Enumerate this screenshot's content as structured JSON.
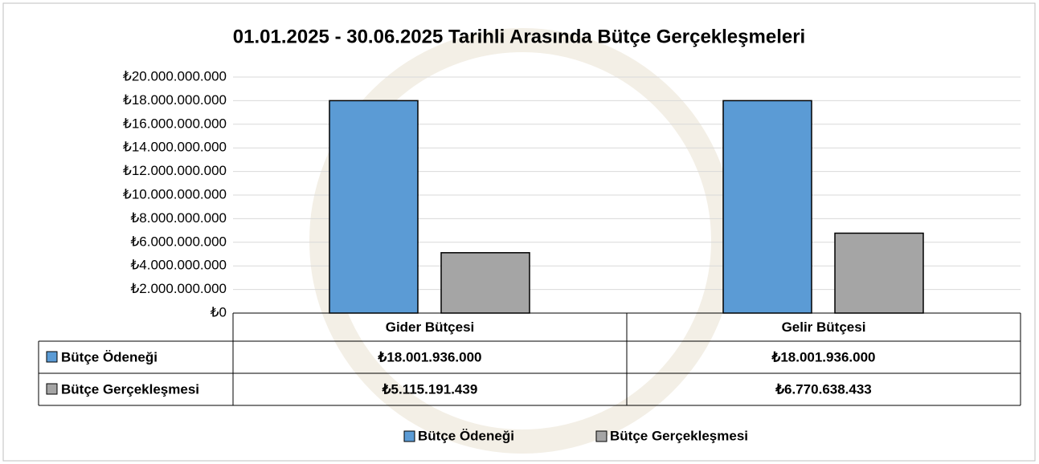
{
  "chart_data": {
    "type": "bar",
    "title": "01.01.2025 - 30.06.2025 Tarihli Arasında Bütçe Gerçekleşmeleri",
    "categories": [
      "Gider Bütçesi",
      "Gelir Bütçesi"
    ],
    "series": [
      {
        "name": "Bütçe Ödeneği",
        "color": "#5b9bd5",
        "values": [
          18001936000,
          18001936000
        ],
        "value_labels": [
          "₺18.001.936.000",
          "₺18.001.936.000"
        ]
      },
      {
        "name": "Bütçe Gerçekleşmesi",
        "color": "#a5a5a5",
        "values": [
          5115191439,
          6770638433
        ],
        "value_labels": [
          "₺5.115.191.439",
          "₺6.770.638.433"
        ]
      }
    ],
    "ylim": [
      0,
      20000000000
    ],
    "yticks": [
      {
        "value": 0,
        "label": "₺0"
      },
      {
        "value": 2000000000,
        "label": "₺2.000.000.000"
      },
      {
        "value": 4000000000,
        "label": "₺4.000.000.000"
      },
      {
        "value": 6000000000,
        "label": "₺6.000.000.000"
      },
      {
        "value": 8000000000,
        "label": "₺8.000.000.000"
      },
      {
        "value": 10000000000,
        "label": "₺10.000.000.000"
      },
      {
        "value": 12000000000,
        "label": "₺12.000.000.000"
      },
      {
        "value": 14000000000,
        "label": "₺14.000.000.000"
      },
      {
        "value": 16000000000,
        "label": "₺16.000.000.000"
      },
      {
        "value": 18000000000,
        "label": "₺18.000.000.000"
      },
      {
        "value": 20000000000,
        "label": "₺20.000.000.000"
      }
    ],
    "grid": true
  }
}
